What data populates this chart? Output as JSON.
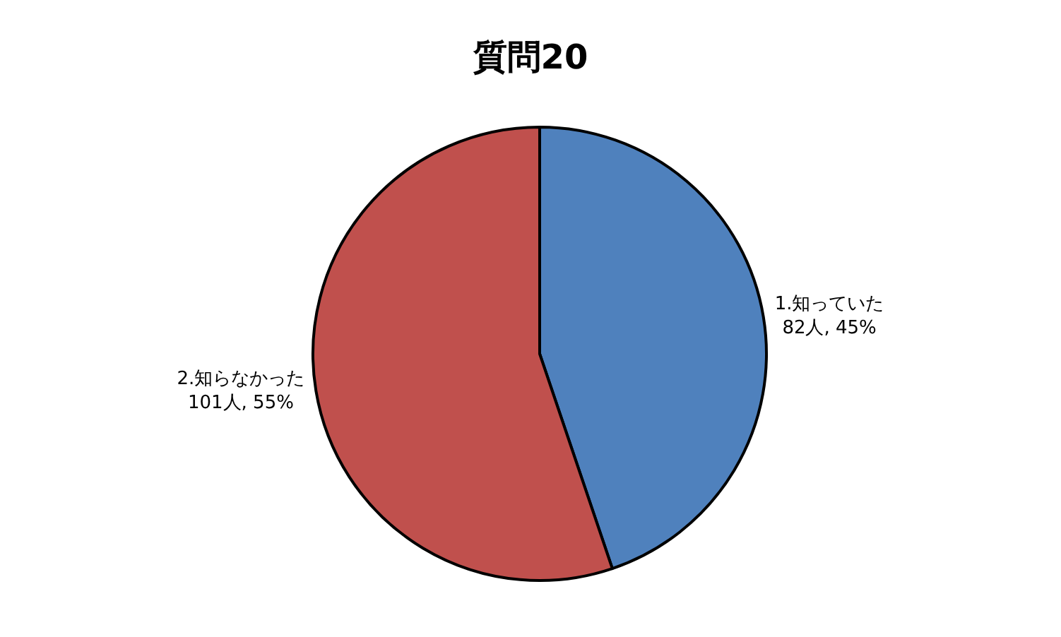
{
  "chart_data": {
    "type": "pie",
    "title": "質問20",
    "categories": [
      "1.知っていた",
      "2.知らなかった"
    ],
    "values": [
      82,
      101
    ],
    "value_labels": [
      "82人, 45%",
      "101人, 55%"
    ],
    "colors": [
      "#4f81bd",
      "#c0504d"
    ],
    "legend": false
  }
}
